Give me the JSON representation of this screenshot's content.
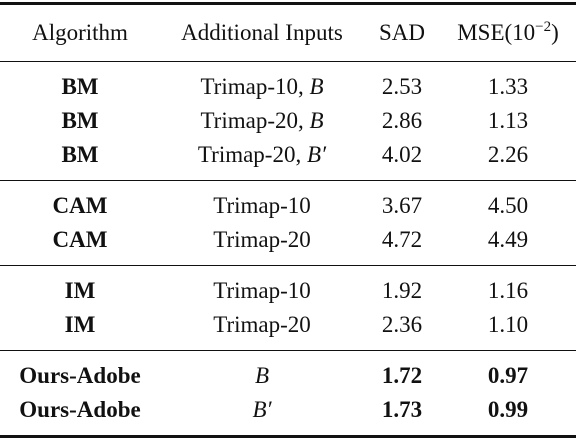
{
  "header": {
    "algorithm": "Algorithm",
    "inputs": "Additional Inputs",
    "sad": "SAD",
    "mse_base": "MSE(10",
    "mse_exp": "−2",
    "mse_close": ")"
  },
  "groups": [
    {
      "rows": [
        {
          "algo": "BM",
          "input_text": "Trimap-10, ",
          "input_var": "B",
          "sad": "2.53",
          "mse": "1.33"
        },
        {
          "algo": "BM",
          "input_text": "Trimap-20, ",
          "input_var": "B",
          "sad": "2.86",
          "mse": "1.13"
        },
        {
          "algo": "BM",
          "input_text": "Trimap-20, ",
          "input_var": "B′",
          "sad": "4.02",
          "mse": "2.26"
        }
      ]
    },
    {
      "rows": [
        {
          "algo": "CAM",
          "input_text": "Trimap-10",
          "input_var": "",
          "sad": "3.67",
          "mse": "4.50"
        },
        {
          "algo": "CAM",
          "input_text": "Trimap-20",
          "input_var": "",
          "sad": "4.72",
          "mse": "4.49"
        }
      ]
    },
    {
      "rows": [
        {
          "algo": "IM",
          "input_text": "Trimap-10",
          "input_var": "",
          "sad": "1.92",
          "mse": "1.16"
        },
        {
          "algo": "IM",
          "input_text": "Trimap-20",
          "input_var": "",
          "sad": "2.36",
          "mse": "1.10"
        }
      ]
    },
    {
      "rows": [
        {
          "algo": "Ours-Adobe",
          "input_text": "",
          "input_var": "B",
          "sad": "1.72",
          "mse": "0.97"
        },
        {
          "algo": "Ours-Adobe",
          "input_text": "",
          "input_var": "B′",
          "sad": "1.73",
          "mse": "0.99"
        }
      ]
    }
  ]
}
